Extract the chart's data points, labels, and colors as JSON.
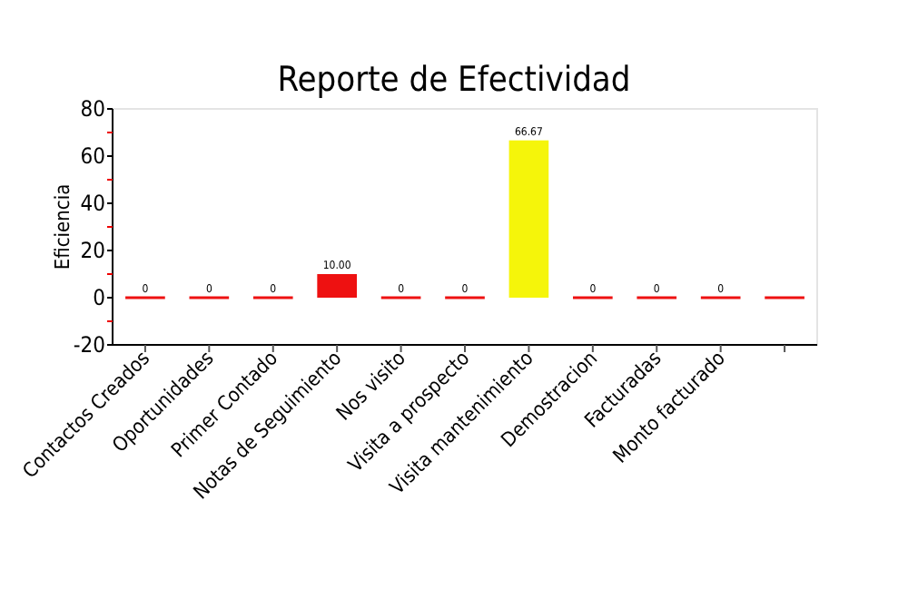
{
  "chart_data": {
    "type": "bar",
    "title": "Reporte de Efectividad",
    "ylabel": "Eficiencia",
    "categories": [
      "Contactos Creados",
      "Oportunidades",
      "Primer Contado",
      "Notas de Seguimiento",
      "Nos visito",
      "Visita a prospecto",
      "Visita mantenimiento",
      "Demostracion",
      "Facturadas",
      "Monto facturado",
      null
    ],
    "values": [
      0,
      0,
      0,
      10,
      0,
      0,
      66.67,
      0,
      0,
      0,
      0
    ],
    "colors": [
      "#ee1111",
      "#ee1111",
      "#ee1111",
      "#ee1111",
      "#ee1111",
      "#ee1111",
      "#f5f50a",
      "#ee1111",
      "#ee1111",
      "#ee1111",
      "#ee1111"
    ],
    "value_labels": [
      "0",
      "0",
      "0",
      "10.00",
      "0",
      "0",
      "66.67",
      "0",
      "0",
      "0",
      null
    ],
    "ylim": [
      -20,
      80
    ],
    "yticks": [
      -20,
      {
        "value": -10,
        "label": null
      },
      0,
      {
        "value": 10,
        "label": null
      },
      20,
      {
        "value": 30,
        "label": null
      },
      40,
      {
        "value": 50,
        "label": null
      },
      60,
      {
        "value": 70,
        "label": null
      },
      80
    ],
    "grid": false
  }
}
